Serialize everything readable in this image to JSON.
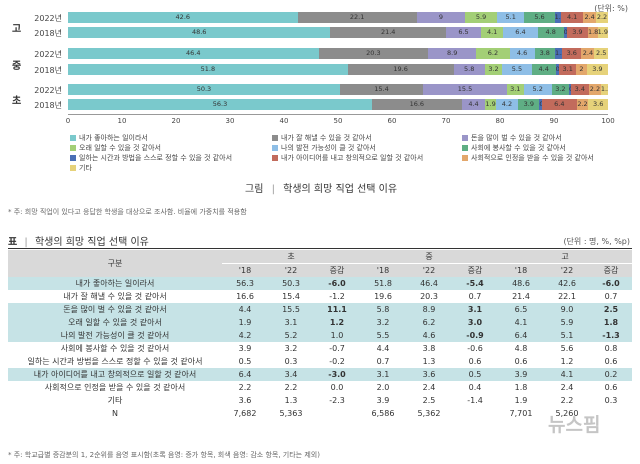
{
  "chart_data": {
    "type": "bar",
    "unit": "(단위: %)",
    "groups": [
      {
        "label": "고",
        "rows": [
          {
            "year": "2022년",
            "values": [
              42.6,
              22.1,
              9,
              5.9,
              5.1,
              5.6,
              1.2,
              4.1,
              2.4,
              2.2
            ],
            "labels": [
              "42.6",
              "22.1",
              "9",
              "5.9",
              "5.1",
              "5.6",
              "1.2",
              "4.1",
              "2.4",
              "2.2"
            ]
          },
          {
            "year": "2018년",
            "values": [
              48.6,
              21.4,
              6.5,
              4.1,
              6.4,
              4.8,
              0.6,
              3.9,
              1.8,
              1.9
            ],
            "labels": [
              "48.6",
              "21.4",
              "6.5",
              "4.1",
              "6.4",
              "4.8",
              "0.6",
              "3.9",
              "1.8",
              "1.9"
            ]
          }
        ]
      },
      {
        "label": "중",
        "rows": [
          {
            "year": "2022년",
            "values": [
              46.4,
              20.3,
              8.9,
              6.2,
              4.6,
              3.8,
              1.3,
              3.6,
              2.4,
              2.5
            ],
            "labels": [
              "46.4",
              "20.3",
              "8.9",
              "6.2",
              "4.6",
              "3.8",
              "1.3",
              "3.6",
              "2.4",
              "2.5"
            ]
          },
          {
            "year": "2018년",
            "values": [
              51.8,
              19.6,
              5.8,
              3.2,
              5.5,
              4.4,
              0.7,
              3.1,
              2.0,
              3.9
            ],
            "labels": [
              "51.8",
              "19.6",
              "5.8",
              "3.2",
              "5.5",
              "4.4",
              "0.7",
              "3.1",
              "2",
              "3.9"
            ]
          }
        ]
      },
      {
        "label": "초",
        "rows": [
          {
            "year": "2022년",
            "values": [
              50.3,
              15.4,
              15.5,
              3.1,
              5.2,
              3.2,
              0.3,
              3.4,
              2.2,
              1.3
            ],
            "labels": [
              "50.3",
              "15.4",
              "15.5",
              "3.1",
              "5.2",
              "3.2",
              "0.3",
              "3.4",
              "2.2",
              "1.3"
            ]
          },
          {
            "year": "2018년",
            "values": [
              56.3,
              16.6,
              4.4,
              1.9,
              4.2,
              3.9,
              0.5,
              6.4,
              2.2,
              3.6
            ],
            "labels": [
              "56.3",
              "16.6",
              "4.4",
              "1.9",
              "4.2",
              "3.9",
              "0.5",
              "6.4",
              "2.2",
              "3.6"
            ]
          }
        ]
      }
    ],
    "xticks": [
      "0",
      "10",
      "20",
      "30",
      "40",
      "50",
      "60",
      "70",
      "80",
      "90",
      "100"
    ],
    "xlim": [
      0,
      100
    ],
    "series": [
      {
        "name": "내가 좋아하는 일이라서",
        "color": "#7ac9cc"
      },
      {
        "name": "내가 잘 해낼 수 있을 것 같아서",
        "color": "#8c8c8c"
      },
      {
        "name": "돈을 많이 벌 수 있을 것 같아서",
        "color": "#9a95c8"
      },
      {
        "name": "오래 일할 수 있을 것 같아서",
        "color": "#a3cf76"
      },
      {
        "name": "나의 발전 가능성이 클 것 같아서",
        "color": "#8ebee6"
      },
      {
        "name": "사회에 봉사할 수 있을 것 같아서",
        "color": "#5fae84"
      },
      {
        "name": "일하는 시간과 방법을 스스로 정할 수 있을 것 같아서",
        "color": "#4a6fb5"
      },
      {
        "name": "내가 아이디어를 내고 창의적으로 일할 것 같아서",
        "color": "#c26b5c"
      },
      {
        "name": "사회적으로 인정을 받을 수 있을 것 같아서",
        "color": "#e3a76b"
      },
      {
        "name": "기타",
        "color": "#e6d27a"
      }
    ]
  },
  "figure_caption": {
    "label": "그림",
    "title": "학생의 희망 직업 선택 이유"
  },
  "figure_note": "* 주: 희망 직업이 있다고 응답한 학생을 대상으로 조사함. 비율에 가중치를 적용함",
  "table": {
    "label": "표",
    "title": "학생의 희망 직업 선택 이유",
    "unit": "(단위 : 명, %, %p)",
    "col_header": "구분",
    "groups": [
      "초",
      "중",
      "고"
    ],
    "subheaders": [
      "'18",
      "'22",
      "증감"
    ],
    "rows": [
      {
        "label": "내가 좋아하는 일이라서",
        "cells": [
          "56.3",
          "50.3",
          "-6.0",
          "51.8",
          "46.4",
          "-5.4",
          "48.6",
          "42.6",
          "-6.0"
        ],
        "hl": true
      },
      {
        "label": "내가 잘 해낼 수 있을 것 같아서",
        "cells": [
          "16.6",
          "15.4",
          "-1.2",
          "19.6",
          "20.3",
          "0.7",
          "21.4",
          "22.1",
          "0.7"
        ],
        "hl": false
      },
      {
        "label": "돈을 많이 벌 수 있을 것 같아서",
        "cells": [
          "4.4",
          "15.5",
          "11.1",
          "5.8",
          "8.9",
          "3.1",
          "6.5",
          "9.0",
          "2.5"
        ],
        "hl": true
      },
      {
        "label": "오래 일할 수 있을 것 같아서",
        "cells": [
          "1.9",
          "3.1",
          "1.2",
          "3.2",
          "6.2",
          "3.0",
          "4.1",
          "5.9",
          "1.8"
        ],
        "hl": true
      },
      {
        "label": "나의 발전 가능성이 클 것 같아서",
        "cells": [
          "4.2",
          "5.2",
          "1.0",
          "5.5",
          "4.6",
          "-0.9",
          "6.4",
          "5.1",
          "-1.3"
        ],
        "hl": true
      },
      {
        "label": "사회에 봉사할 수 있을 것 같아서",
        "cells": [
          "3.9",
          "3.2",
          "-0.7",
          "4.4",
          "3.8",
          "-0.6",
          "4.8",
          "5.6",
          "0.8"
        ],
        "hl": false
      },
      {
        "label": "일하는 시간과 방법을 스스로 정할 수 있을 것 같아서",
        "cells": [
          "0.5",
          "0.3",
          "-0.2",
          "0.7",
          "1.3",
          "0.6",
          "0.6",
          "1.2",
          "0.6"
        ],
        "hl": false
      },
      {
        "label": "내가 아이디어를 내고 창의적으로 일할 것 같아서",
        "cells": [
          "6.4",
          "3.4",
          "-3.0",
          "3.1",
          "3.6",
          "0.5",
          "3.9",
          "4.1",
          "0.2"
        ],
        "hl": true
      },
      {
        "label": "사회적으로 인정을 받을 수 있을 것 같아서",
        "cells": [
          "2.2",
          "2.2",
          "0.0",
          "2.0",
          "2.4",
          "0.4",
          "1.8",
          "2.4",
          "0.6"
        ],
        "hl": false
      },
      {
        "label": "기타",
        "cells": [
          "3.6",
          "1.3",
          "-2.3",
          "3.9",
          "2.5",
          "-1.4",
          "1.9",
          "2.2",
          "0.3"
        ],
        "hl": false
      },
      {
        "label": "N",
        "cells": [
          "7,682",
          "5,363",
          "",
          "6,586",
          "5,362",
          "",
          "7,701",
          "5,260",
          ""
        ],
        "hl": false
      }
    ],
    "bold_cells": [
      [
        0,
        2
      ],
      [
        0,
        5
      ],
      [
        0,
        8
      ],
      [
        2,
        2
      ],
      [
        2,
        5
      ],
      [
        2,
        8
      ],
      [
        3,
        2
      ],
      [
        3,
        5
      ],
      [
        3,
        8
      ],
      [
        4,
        5
      ],
      [
        4,
        8
      ],
      [
        7,
        2
      ]
    ]
  },
  "table_note": "* 주: 학교급별 증감분의 1, 2순위를 음영 표시함(초록 음영: 증가 항목, 회색 음영: 감소 항목, 기타는 제외)",
  "watermark": "뉴스핌"
}
